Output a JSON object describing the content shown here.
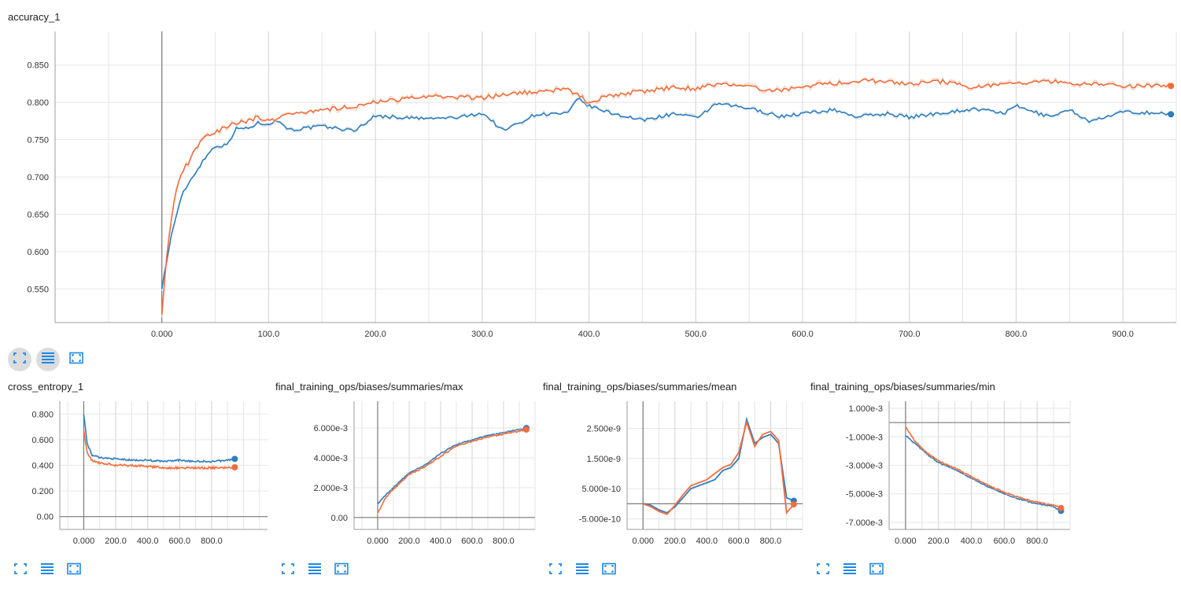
{
  "colors": {
    "blue": "#2f7dbd",
    "orange": "#f36c3b",
    "blue_light": "#c6dbef",
    "orange_light": "#fdd0bc"
  },
  "toolbar_icons": [
    "fit-to-domain-icon",
    "toggle-log-scale-icon",
    "expand-chart-icon"
  ],
  "chart_data": [
    {
      "id": "accuracy",
      "type": "line",
      "title": "accuracy_1",
      "xlim": [
        -100,
        950
      ],
      "ylim": [
        0.505,
        0.895
      ],
      "xticks": [
        0,
        100,
        200,
        300,
        400,
        500,
        600,
        700,
        800,
        900
      ],
      "xtick_labels": [
        "0.000",
        "100.0",
        "200.0",
        "300.0",
        "400.0",
        "500.0",
        "600.0",
        "700.0",
        "800.0",
        "900.0"
      ],
      "yticks": [
        0.55,
        0.6,
        0.65,
        0.7,
        0.75,
        0.8,
        0.85
      ],
      "ytick_labels": [
        "0.550",
        "0.600",
        "0.650",
        "0.700",
        "0.750",
        "0.800",
        "0.850"
      ],
      "series": [
        {
          "color": "#2f7dbd",
          "x": [
            0,
            10,
            20,
            30,
            40,
            50,
            60,
            70,
            80,
            90,
            100,
            110,
            120,
            150,
            180,
            200,
            220,
            250,
            280,
            300,
            320,
            350,
            380,
            390,
            400,
            420,
            450,
            480,
            500,
            520,
            550,
            580,
            600,
            630,
            650,
            680,
            700,
            730,
            760,
            790,
            800,
            830,
            850,
            870,
            900,
            930,
            945
          ],
          "y": [
            0.552,
            0.63,
            0.68,
            0.703,
            0.725,
            0.742,
            0.742,
            0.765,
            0.765,
            0.772,
            0.772,
            0.775,
            0.763,
            0.768,
            0.762,
            0.782,
            0.78,
            0.778,
            0.78,
            0.786,
            0.762,
            0.784,
            0.785,
            0.805,
            0.795,
            0.786,
            0.776,
            0.785,
            0.779,
            0.798,
            0.792,
            0.781,
            0.785,
            0.79,
            0.781,
            0.785,
            0.78,
            0.786,
            0.791,
            0.786,
            0.795,
            0.781,
            0.79,
            0.774,
            0.787,
            0.786,
            0.784
          ]
        },
        {
          "color": "#f36c3b",
          "x": [
            0,
            5,
            10,
            15,
            20,
            25,
            30,
            35,
            40,
            50,
            60,
            70,
            80,
            90,
            100,
            120,
            150,
            180,
            200,
            230,
            260,
            300,
            330,
            360,
            380,
            400,
            420,
            450,
            480,
            500,
            520,
            550,
            580,
            600,
            630,
            660,
            700,
            730,
            760,
            800,
            830,
            860,
            900,
            945
          ],
          "y": [
            0.518,
            0.6,
            0.655,
            0.69,
            0.71,
            0.72,
            0.735,
            0.745,
            0.752,
            0.76,
            0.768,
            0.772,
            0.775,
            0.78,
            0.775,
            0.785,
            0.79,
            0.795,
            0.8,
            0.805,
            0.808,
            0.806,
            0.812,
            0.815,
            0.818,
            0.8,
            0.81,
            0.815,
            0.82,
            0.818,
            0.825,
            0.82,
            0.815,
            0.822,
            0.825,
            0.83,
            0.825,
            0.828,
            0.82,
            0.825,
            0.828,
            0.825,
            0.822,
            0.822
          ]
        }
      ]
    },
    {
      "id": "cross_entropy",
      "type": "line",
      "title": "cross_entropy_1",
      "xlim": [
        -150,
        1150
      ],
      "ylim": [
        -0.1,
        0.9
      ],
      "xticks": [
        0,
        200,
        400,
        600,
        800
      ],
      "xtick_labels": [
        "0.000",
        "200.0",
        "400.0",
        "600.0",
        "800.0"
      ],
      "yticks": [
        0,
        0.2,
        0.4,
        0.6,
        0.8
      ],
      "ytick_labels": [
        "0.00",
        "0.200",
        "0.400",
        "0.600",
        "0.800"
      ],
      "series": [
        {
          "color": "#2f7dbd",
          "x": [
            0,
            20,
            50,
            100,
            200,
            300,
            400,
            500,
            600,
            700,
            800,
            900,
            945
          ],
          "y": [
            0.8,
            0.58,
            0.48,
            0.46,
            0.45,
            0.44,
            0.44,
            0.43,
            0.44,
            0.43,
            0.43,
            0.44,
            0.45
          ]
        },
        {
          "color": "#f36c3b",
          "x": [
            0,
            20,
            50,
            100,
            200,
            300,
            400,
            500,
            600,
            700,
            800,
            900,
            945
          ],
          "y": [
            0.68,
            0.5,
            0.44,
            0.42,
            0.4,
            0.4,
            0.39,
            0.38,
            0.38,
            0.38,
            0.38,
            0.38,
            0.385
          ]
        }
      ]
    },
    {
      "id": "biases_max",
      "type": "line",
      "title": "final_training_ops/biases/summaries/max",
      "xlim": [
        -150,
        1000
      ],
      "ylim": [
        -0.0008,
        0.0078
      ],
      "xticks": [
        0,
        200,
        400,
        600,
        800
      ],
      "xtick_labels": [
        "0.000",
        "200.0",
        "400.0",
        "600.0",
        "800.0"
      ],
      "yticks": [
        0,
        0.002,
        0.004,
        0.006
      ],
      "ytick_labels": [
        "0.00",
        "2.000e-3",
        "4.000e-3",
        "6.000e-3"
      ],
      "series": [
        {
          "color": "#2f7dbd",
          "x": [
            0,
            50,
            100,
            150,
            200,
            300,
            400,
            500,
            600,
            700,
            800,
            900,
            945
          ],
          "y": [
            0.0009,
            0.0015,
            0.002,
            0.0025,
            0.003,
            0.0035,
            0.0043,
            0.0049,
            0.0052,
            0.0055,
            0.0057,
            0.0059,
            0.006
          ]
        },
        {
          "color": "#f36c3b",
          "x": [
            0,
            50,
            100,
            150,
            200,
            300,
            400,
            500,
            600,
            700,
            800,
            900,
            945
          ],
          "y": [
            0.0003,
            0.0013,
            0.0019,
            0.0024,
            0.0029,
            0.0034,
            0.0041,
            0.0048,
            0.0051,
            0.0054,
            0.0056,
            0.0058,
            0.0059
          ]
        }
      ]
    },
    {
      "id": "biases_mean",
      "type": "line",
      "title": "final_training_ops/biases/summaries/mean",
      "xlim": [
        -100,
        1000
      ],
      "ylim": [
        -8.5e-10,
        3.4e-09
      ],
      "xticks": [
        0,
        200,
        400,
        600,
        800
      ],
      "xtick_labels": [
        "0.000",
        "200.0",
        "400.0",
        "600.0",
        "800.0"
      ],
      "yticks": [
        -5e-10,
        5e-10,
        1.5e-09,
        2.5e-09
      ],
      "ytick_labels": [
        "-5.000e-10",
        "5.000e-10",
        "1.500e-9",
        "2.500e-9"
      ],
      "series": [
        {
          "color": "#2f7dbd",
          "x": [
            0,
            50,
            100,
            150,
            200,
            250,
            300,
            350,
            400,
            450,
            500,
            550,
            600,
            650,
            700,
            750,
            800,
            850,
            900,
            945
          ],
          "y": [
            1e-11,
            -5e-11,
            -2e-10,
            -3e-10,
            -1e-10,
            2e-10,
            5e-10,
            6e-10,
            7e-10,
            8e-10,
            1.1e-09,
            1.2e-09,
            1.5e-09,
            2.8e-09,
            2e-09,
            2.2e-09,
            2.3e-09,
            2e-09,
            2e-10,
            1e-10
          ]
        },
        {
          "color": "#f36c3b",
          "x": [
            0,
            50,
            100,
            150,
            200,
            250,
            300,
            350,
            400,
            450,
            500,
            550,
            600,
            650,
            700,
            750,
            800,
            850,
            900,
            945
          ],
          "y": [
            0,
            -1e-10,
            -2.5e-10,
            -3.5e-10,
            -5e-11,
            3e-10,
            6e-10,
            7e-10,
            8e-10,
            1e-09,
            1.2e-09,
            1.3e-09,
            1.7e-09,
            2.7e-09,
            1.9e-09,
            2.3e-09,
            2.4e-09,
            2.1e-09,
            -3e-10,
            -2e-11
          ]
        }
      ]
    },
    {
      "id": "biases_min",
      "type": "line",
      "title": "final_training_ops/biases/summaries/min",
      "xlim": [
        -100,
        1000
      ],
      "ylim": [
        -0.0075,
        0.0015
      ],
      "xticks": [
        0,
        200,
        400,
        600,
        800
      ],
      "xtick_labels": [
        "0.000",
        "200.0",
        "400.0",
        "600.0",
        "800.0"
      ],
      "yticks": [
        -0.007,
        -0.005,
        -0.003,
        -0.001,
        0.001
      ],
      "ytick_labels": [
        "-7.000e-3",
        "-5.000e-3",
        "-3.000e-3",
        "-1.000e-3",
        "1.000e-3"
      ],
      "series": [
        {
          "color": "#2f7dbd",
          "x": [
            0,
            50,
            100,
            150,
            200,
            300,
            400,
            500,
            600,
            700,
            800,
            900,
            945
          ],
          "y": [
            -0.0009,
            -0.0014,
            -0.0019,
            -0.0024,
            -0.0028,
            -0.0033,
            -0.0039,
            -0.0045,
            -0.005,
            -0.0054,
            -0.0057,
            -0.0059,
            -0.0062
          ]
        },
        {
          "color": "#f36c3b",
          "x": [
            0,
            50,
            100,
            150,
            200,
            300,
            400,
            500,
            600,
            700,
            800,
            900,
            945
          ],
          "y": [
            -0.0003,
            -0.0012,
            -0.0018,
            -0.0023,
            -0.0027,
            -0.0032,
            -0.0038,
            -0.0044,
            -0.0049,
            -0.0053,
            -0.0056,
            -0.0058,
            -0.006
          ]
        }
      ]
    }
  ]
}
